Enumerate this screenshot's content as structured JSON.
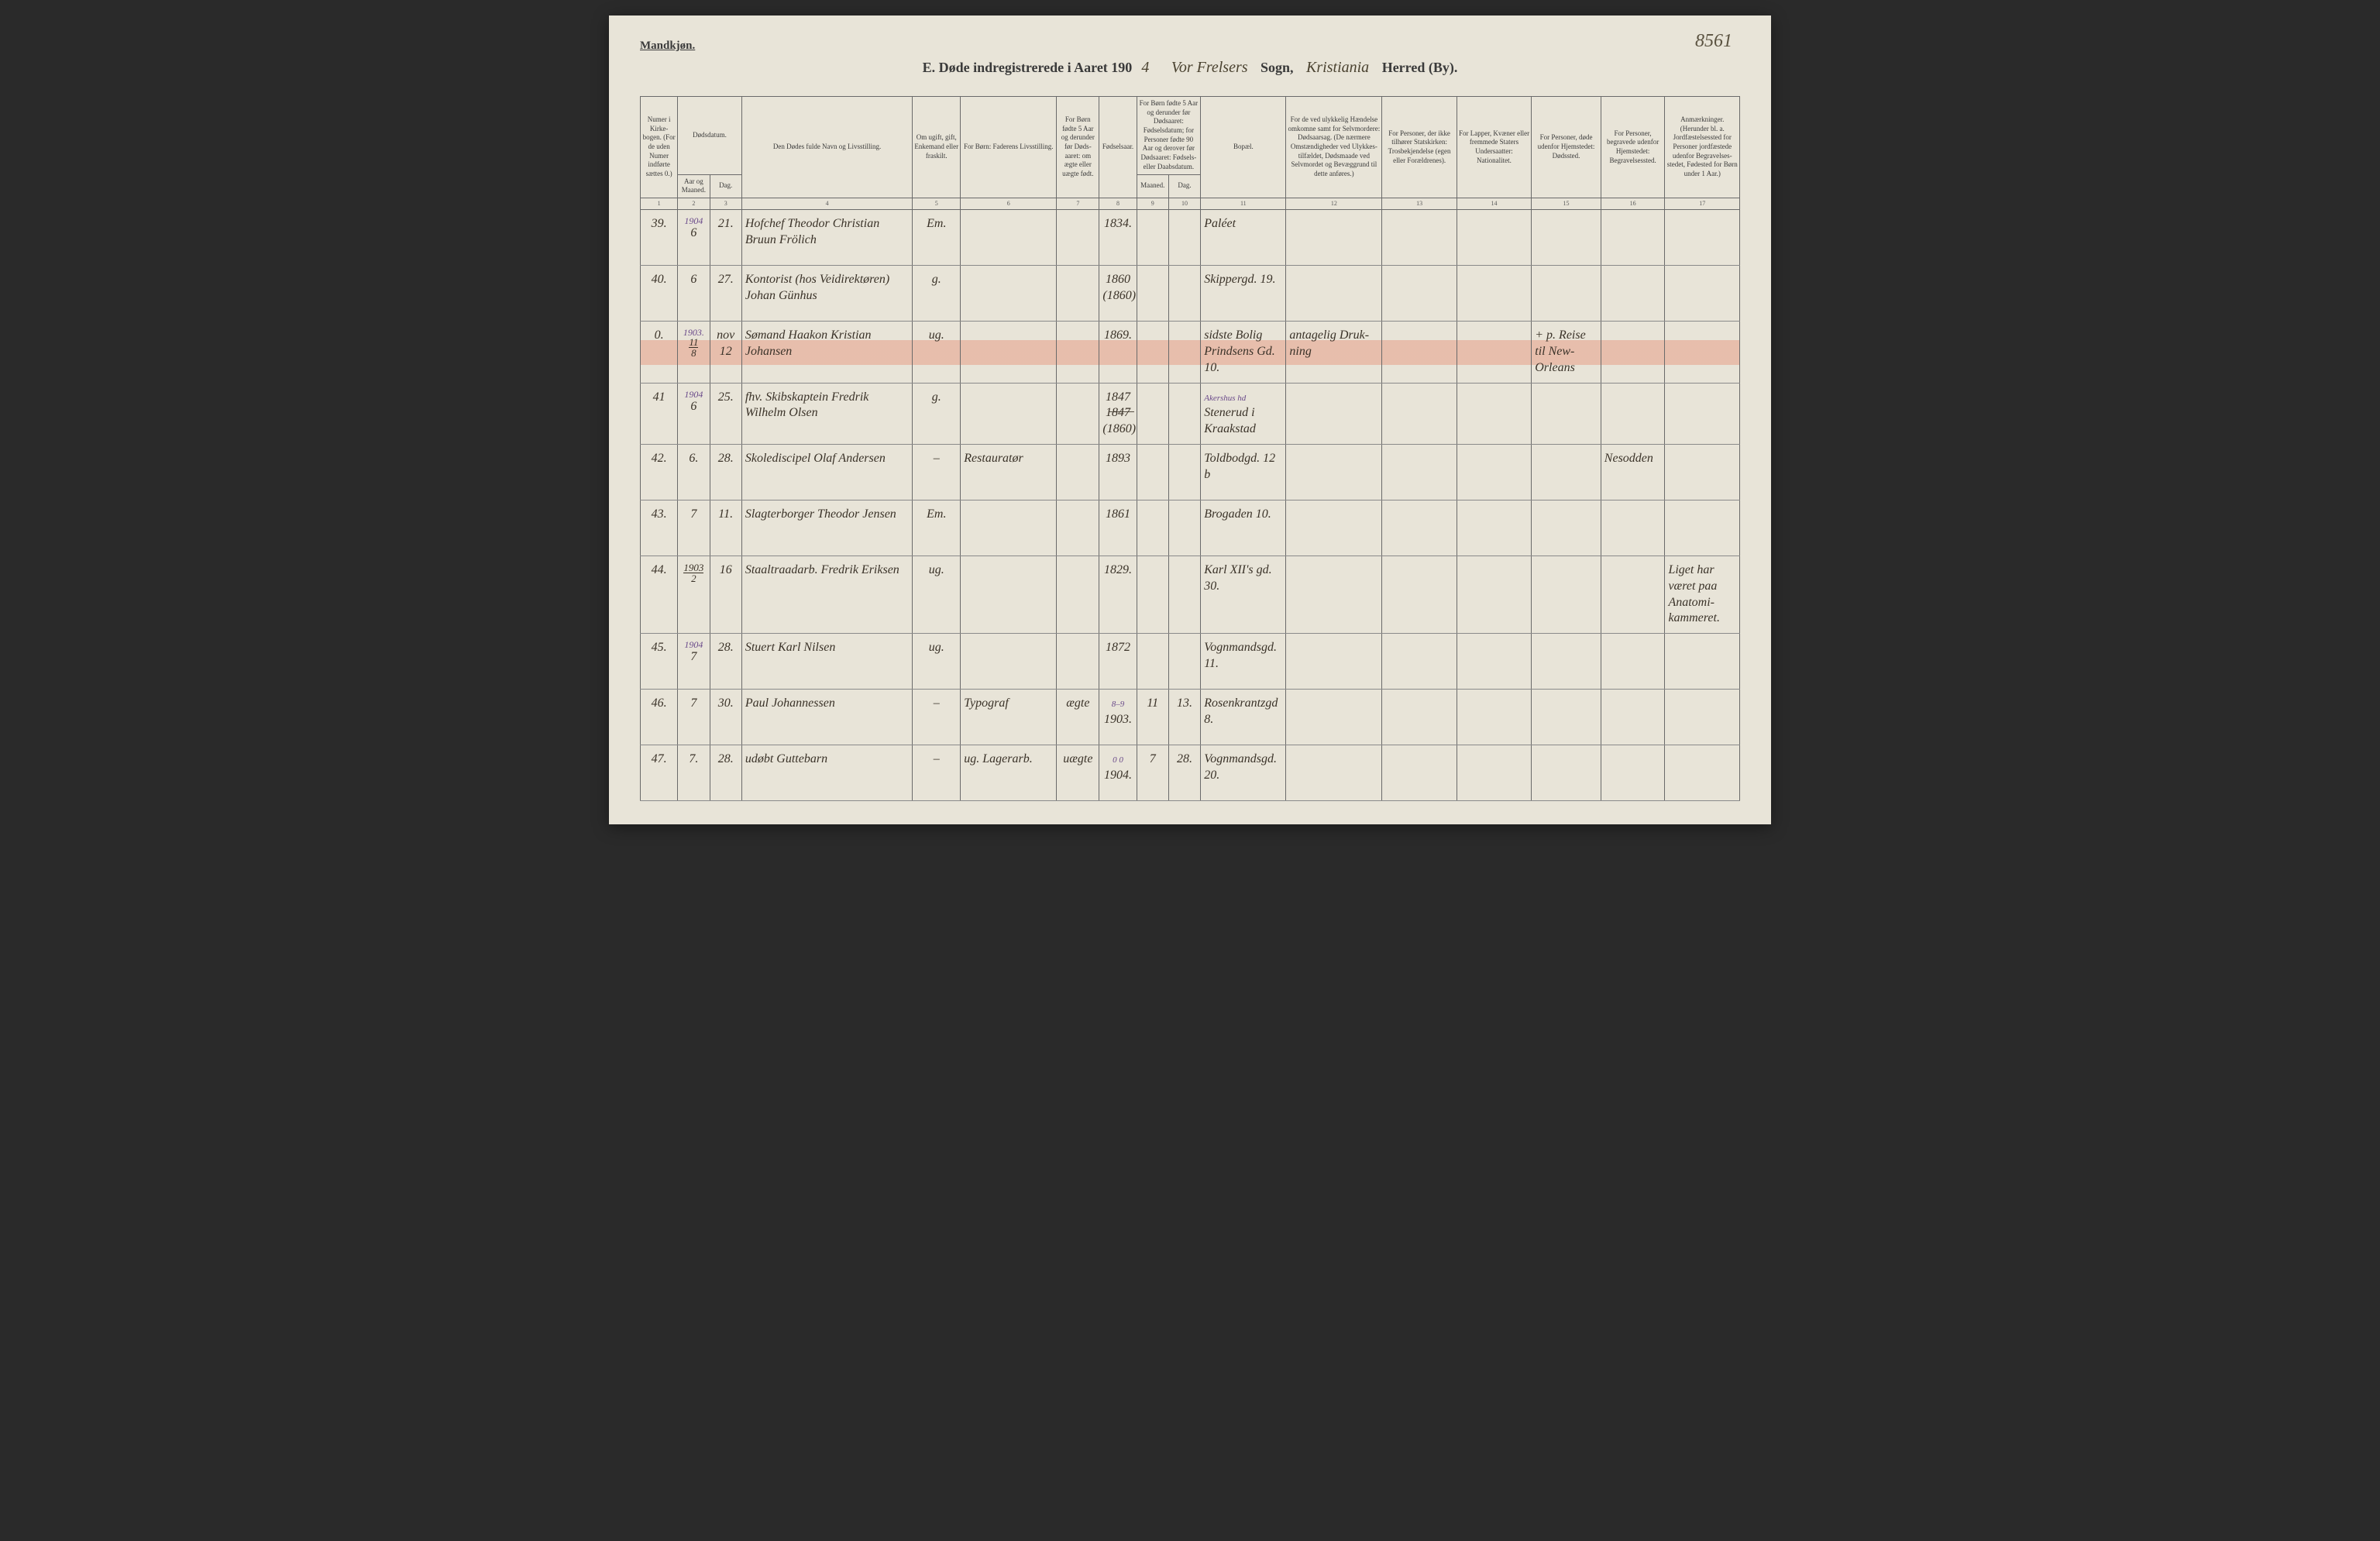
{
  "page_number_topright": "8561",
  "gender_label": "Mandkjøn.",
  "header": {
    "printed_prefix": "E.  Døde indregistrerede i Aaret 190",
    "year_suffix": "4",
    "sogn_word": "Sogn,",
    "herred_word": "Herred (By).",
    "sogn_written": "Vor Frelsers",
    "herred_written": "Kristiania"
  },
  "columns": {
    "c1": "Numer i Kirke­bogen. (For de uden Numer indførte sættes 0.)",
    "c2_top": "Dødsdatum.",
    "c2_a": "Aar og Maaned.",
    "c2_b": "Dag.",
    "c4": "Den Dødes fulde Navn og Livsstilling.",
    "c5": "Om ugift, gift, Enke­mand eller fraskilt.",
    "c6": "For Børn: Faderens Livsstilling.",
    "c7": "For Børn fødte 5 Aar og derunder før Døds­aaret: om ægte eller uægte født.",
    "c8": "Fødsels­aar.",
    "c9_top": "For Børn fødte 5 Aar og der­under før Dødsaaret: Fødselsdatum; for Personer fødte 90 Aar og derover før Dødsaaret: Fødsels- eller Daabsdatum.",
    "c9_a": "Maaned.",
    "c9_b": "Dag.",
    "c11": "Bopæl.",
    "c12": "For de ved ulykkelig Hændelse omkomne samt for Selvmordere: Dødsaarsag. (De nærmere Omstæn­digheder ved Ulykkes­tilfældet, Dødsmaade ved Selvmordet og Bevæggrund til dette anføres.)",
    "c13": "For Personer, der ikke tilhører Statskirken: Trosbekjendelse (egen eller Forældrenes).",
    "c14": "For Lapper, Kvæner eller fremmede Staters Undersaatter: Nationalitet.",
    "c15": "For Personer, døde udenfor Hjemstedet: Dødssted.",
    "c16": "For Personer, begravede udenfor Hjemstedet: Begravelsessted.",
    "c17": "Anmærkninger. (Herunder bl. a. Jordfæstelsessted for Personer jordfæstede udenfor Begravelses­stedet, Fødested for Børn under 1 Aar.)"
  },
  "colnums": [
    "1",
    "2",
    "3",
    "4",
    "5",
    "6",
    "7",
    "8",
    "9",
    "10",
    "11",
    "12",
    "13",
    "14",
    "15",
    "16",
    "17"
  ],
  "rows": [
    {
      "num": "39.",
      "year_note": "1904",
      "month": "6",
      "day": "21.",
      "name": "Hofchef Theodor Christian Bruun Frölich",
      "civil": "Em.",
      "father": "",
      "legit": "",
      "birth": "1834.",
      "bm": "",
      "bd": "",
      "residence": "Paléet",
      "cause": "",
      "faith": "",
      "nation": "",
      "deathplace": "",
      "burial": "",
      "remarks": ""
    },
    {
      "num": "40.",
      "month": "6",
      "day": "27.",
      "name": "Kontorist (hos Veidirektøren) Johan Günhus",
      "civil": "g.",
      "father": "",
      "legit": "",
      "birth": "1860 (1860)",
      "bm": "",
      "bd": "",
      "residence": "Skippergd. 19.",
      "cause": "",
      "faith": "",
      "nation": "",
      "deathplace": "",
      "burial": "",
      "remarks": ""
    },
    {
      "num": "0.",
      "year_note": "1903.",
      "month_frac_top": "11",
      "month_frac_bot": "8",
      "day": "nov 12",
      "name": "Sømand Haakon Kristian Johansen",
      "civil": "ug.",
      "father": "",
      "legit": "",
      "birth": "1869.",
      "bm": "",
      "bd": "",
      "residence": "sidste Bolig Prindsens Gd. 10.",
      "cause": "antagelig Druk­ning",
      "faith": "",
      "nation": "",
      "deathplace": "+ p. Reise til New-Orleans",
      "burial": "",
      "remarks": "",
      "highlight": true
    },
    {
      "num": "41",
      "year_note": "1904",
      "month": "6",
      "day": "25.",
      "name": "fhv. Skibskaptein Fredrik Wilhelm Olsen",
      "civil": "g.",
      "father": "",
      "legit": "",
      "birth": "1847 1̶8̶4̶7̶ (1860)",
      "bm": "",
      "bd": "",
      "residence_note": "Akershus hd",
      "residence": "Stenerud i Kraakstad",
      "cause": "",
      "faith": "",
      "nation": "",
      "deathplace": "",
      "burial": "",
      "remarks": ""
    },
    {
      "num": "42.",
      "month": "6.",
      "day": "28.",
      "name": "Skolediscipel Olaf Andersen",
      "civil": "–",
      "father": "Restauratør",
      "legit": "",
      "birth": "1893",
      "bm": "",
      "bd": "",
      "residence": "Toldbodgd. 12 b",
      "cause": "",
      "faith": "",
      "nation": "",
      "deathplace": "",
      "burial": "Nesodden",
      "remarks": ""
    },
    {
      "num": "43.",
      "month": "7",
      "day": "11.",
      "name": "Slagterborger Theodor Jensen",
      "civil": "Em.",
      "father": "",
      "legit": "",
      "birth": "1861",
      "bm": "",
      "bd": "",
      "residence": "Brogaden 10.",
      "cause": "",
      "faith": "",
      "nation": "",
      "deathplace": "",
      "burial": "",
      "remarks": ""
    },
    {
      "num": "44.",
      "month_frac_top": "1903",
      "month_frac_bot": "2",
      "day": "16",
      "name": "Staaltraadarb. Fredrik Eriksen",
      "civil": "ug.",
      "father": "",
      "legit": "",
      "birth": "1829.",
      "bm": "",
      "bd": "",
      "residence": "Karl XII's gd. 30.",
      "cause": "",
      "faith": "",
      "nation": "",
      "deathplace": "",
      "burial": "",
      "remarks": "Liget har været paa Anatomi­kammeret."
    },
    {
      "num": "45.",
      "year_note": "1904",
      "month": "7",
      "day": "28.",
      "name": "Stuert Karl Nilsen",
      "civil": "ug.",
      "father": "",
      "legit": "",
      "birth": "1872",
      "bm": "",
      "bd": "",
      "residence": "Vognmandsgd. 11.",
      "cause": "",
      "faith": "",
      "nation": "",
      "deathplace": "",
      "burial": "",
      "remarks": ""
    },
    {
      "num": "46.",
      "month": "7",
      "day": "30.",
      "name": "Paul Johannessen",
      "civil": "–",
      "father": "Typograf",
      "legit": "ægte",
      "birth_note": "8–9",
      "birth": "1903.",
      "bm": "11",
      "bd": "13.",
      "residence": "Rosenkrantzgd 8.",
      "cause": "",
      "faith": "",
      "nation": "",
      "deathplace": "",
      "burial": "",
      "remarks": ""
    },
    {
      "num": "47.",
      "month": "7.",
      "day": "28.",
      "name": "udøbt Guttebarn",
      "civil": "–",
      "father": "ug. Lagerarb.",
      "legit": "uægte",
      "birth_note": "0 0",
      "birth": "1904.",
      "bm": "7",
      "bd": "28.",
      "residence": "Vognmandsgd. 20.",
      "cause": "",
      "faith": "",
      "nation": "",
      "deathplace": "",
      "burial": "",
      "remarks": ""
    }
  ]
}
